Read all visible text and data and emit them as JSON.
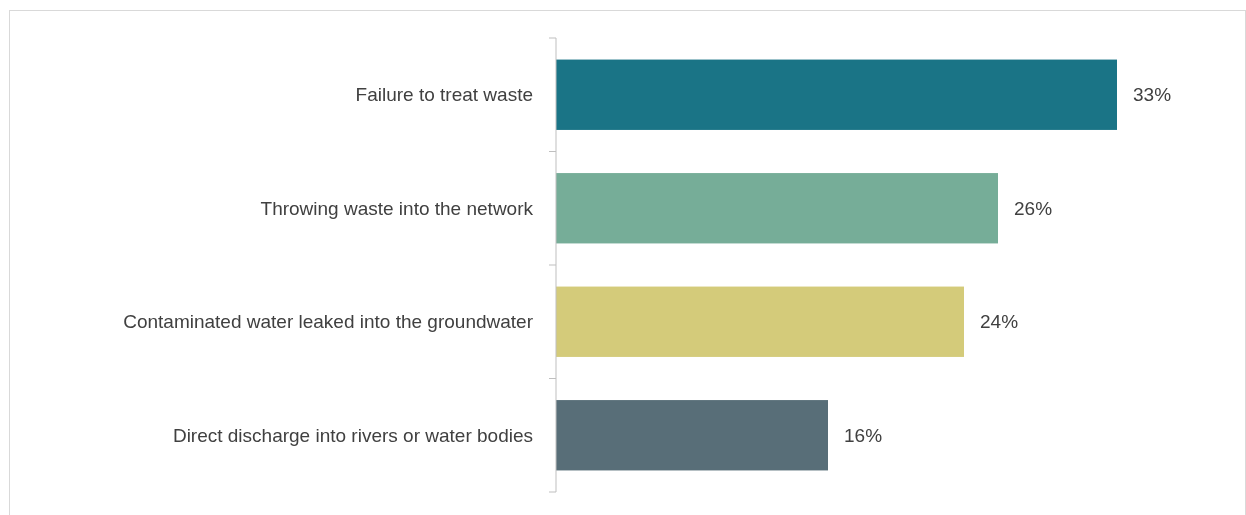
{
  "chart_data": {
    "type": "bar",
    "orientation": "horizontal",
    "categories": [
      "Failure to treat waste",
      "Throwing waste into the network",
      "Contaminated water leaked into the groundwater",
      "Direct discharge into rivers or water bodies"
    ],
    "values": [
      33,
      26,
      24,
      16
    ],
    "colors": [
      "#1a7486",
      "#76ad98",
      "#d4cb7a",
      "#586e78"
    ],
    "value_labels": [
      "33%",
      "26%",
      "24%",
      "16%"
    ]
  }
}
